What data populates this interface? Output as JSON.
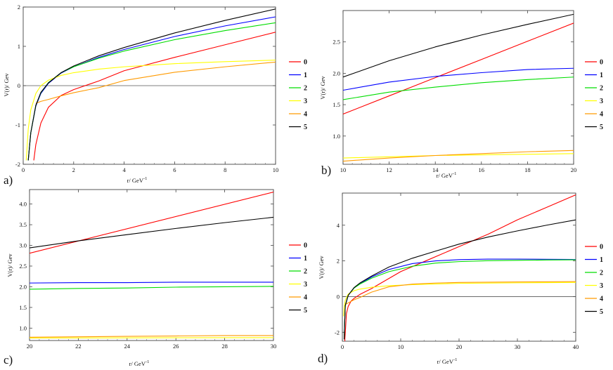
{
  "figure": {
    "legend_values": [
      "0",
      "1",
      "2",
      "3",
      "4",
      "5"
    ],
    "legend_colors": [
      "#ff0000",
      "#0000ff",
      "#00dd00",
      "#ffff00",
      "#ff9a00",
      "#000000"
    ]
  },
  "chart_data": [
    {
      "type": "line",
      "panel_label": "a)",
      "xlabel": "r/ GeV",
      "xlabel_sup": "-1",
      "ylabel": "V(r)/ Gev",
      "xlim": [
        0,
        10
      ],
      "ylim": [
        -2,
        2
      ],
      "xticks": [
        0,
        2,
        4,
        6,
        8,
        10
      ],
      "yticks": [
        -2,
        -1,
        0,
        1,
        2
      ],
      "series": [
        {
          "name": "0",
          "x": [
            0.42,
            0.5,
            0.7,
            1.0,
            1.5,
            2.0,
            3.0,
            4.0,
            6.0,
            8.0,
            10.0
          ],
          "y": [
            -1.9,
            -1.5,
            -0.95,
            -0.55,
            -0.25,
            -0.1,
            0.12,
            0.38,
            0.72,
            1.04,
            1.36
          ]
        },
        {
          "name": "1",
          "x": [
            0.2,
            0.3,
            0.5,
            0.7,
            1.0,
            1.5,
            2.0,
            3.0,
            4.0,
            6.0,
            8.0,
            10.0
          ],
          "y": [
            -1.9,
            -1.2,
            -0.52,
            -0.2,
            0.06,
            0.32,
            0.48,
            0.72,
            0.92,
            1.25,
            1.52,
            1.75
          ]
        },
        {
          "name": "2",
          "x": [
            0.2,
            0.3,
            0.5,
            0.7,
            1.0,
            1.5,
            2.0,
            3.0,
            4.0,
            6.0,
            8.0,
            10.0
          ],
          "y": [
            -1.9,
            -1.2,
            -0.5,
            -0.18,
            0.08,
            0.33,
            0.48,
            0.7,
            0.88,
            1.17,
            1.4,
            1.6
          ]
        },
        {
          "name": "3",
          "x": [
            0.12,
            0.2,
            0.3,
            0.5,
            0.7,
            1.0,
            1.5,
            2.0,
            3.0,
            4.0,
            6.0,
            8.0,
            10.0
          ],
          "y": [
            -1.9,
            -1.1,
            -0.62,
            -0.2,
            0.0,
            0.14,
            0.26,
            0.33,
            0.42,
            0.48,
            0.56,
            0.61,
            0.65
          ]
        },
        {
          "name": "4",
          "x": [
            0.5,
            0.7,
            1.0,
            1.5,
            2.0,
            3.0,
            4.0,
            6.0,
            8.0,
            10.0
          ],
          "y": [
            -0.45,
            -0.4,
            -0.35,
            -0.26,
            -0.18,
            -0.05,
            0.13,
            0.34,
            0.48,
            0.6
          ]
        },
        {
          "name": "5",
          "x": [
            0.2,
            0.3,
            0.5,
            0.7,
            1.0,
            1.5,
            2.0,
            3.0,
            4.0,
            6.0,
            8.0,
            10.0
          ],
          "y": [
            -1.9,
            -1.2,
            -0.5,
            -0.17,
            0.07,
            0.33,
            0.5,
            0.76,
            0.97,
            1.34,
            1.66,
            1.95
          ]
        }
      ]
    },
    {
      "type": "line",
      "panel_label": "b)",
      "xlabel": "r/ GeV",
      "xlabel_sup": "-1",
      "ylabel": "V(r)/ Gev",
      "xlim": [
        10,
        20
      ],
      "ylim": [
        0.55,
        3.0
      ],
      "xticks": [
        10,
        12,
        14,
        16,
        18,
        20
      ],
      "yticks": [
        1.0,
        1.5,
        2.0,
        2.5
      ],
      "series": [
        {
          "name": "0",
          "x": [
            10,
            12,
            14,
            16,
            18,
            20
          ],
          "y": [
            1.35,
            1.64,
            1.93,
            2.22,
            2.51,
            2.8
          ]
        },
        {
          "name": "1",
          "x": [
            10,
            12,
            14,
            16,
            18,
            20
          ],
          "y": [
            1.73,
            1.86,
            1.95,
            2.01,
            2.06,
            2.08
          ]
        },
        {
          "name": "2",
          "x": [
            10,
            12,
            14,
            16,
            18,
            20
          ],
          "y": [
            1.58,
            1.7,
            1.78,
            1.85,
            1.9,
            1.94
          ]
        },
        {
          "name": "3",
          "x": [
            10,
            12,
            14,
            16,
            18,
            20
          ],
          "y": [
            0.65,
            0.67,
            0.69,
            0.7,
            0.71,
            0.72
          ]
        },
        {
          "name": "4",
          "x": [
            10,
            12,
            14,
            16,
            18,
            20
          ],
          "y": [
            0.6,
            0.65,
            0.69,
            0.72,
            0.75,
            0.77
          ]
        },
        {
          "name": "5",
          "x": [
            10,
            12,
            14,
            16,
            18,
            20
          ],
          "y": [
            1.94,
            2.2,
            2.42,
            2.61,
            2.78,
            2.94
          ]
        }
      ]
    },
    {
      "type": "line",
      "panel_label": "c)",
      "xlabel": "r/ GeV",
      "xlabel_sup": "-1",
      "ylabel": "V(r)/ Gev",
      "xlim": [
        20,
        30
      ],
      "ylim": [
        0.7,
        4.35
      ],
      "xticks": [
        20,
        22,
        24,
        26,
        28,
        30
      ],
      "yticks": [
        1.0,
        1.5,
        2.0,
        2.5,
        3.0,
        3.5,
        4.0
      ],
      "series": [
        {
          "name": "0",
          "x": [
            20,
            30
          ],
          "y": [
            2.81,
            4.29
          ]
        },
        {
          "name": "1",
          "x": [
            20,
            22,
            24,
            26,
            28,
            30
          ],
          "y": [
            2.09,
            2.1,
            2.1,
            2.11,
            2.11,
            2.11
          ]
        },
        {
          "name": "2",
          "x": [
            20,
            22,
            24,
            26,
            28,
            30
          ],
          "y": [
            1.94,
            1.96,
            1.97,
            1.99,
            2.0,
            2.01
          ]
        },
        {
          "name": "3",
          "x": [
            20,
            30
          ],
          "y": [
            0.76,
            0.77
          ]
        },
        {
          "name": "4",
          "x": [
            20,
            22,
            24,
            26,
            28,
            30
          ],
          "y": [
            0.78,
            0.79,
            0.8,
            0.81,
            0.82,
            0.82
          ]
        },
        {
          "name": "5",
          "x": [
            20,
            22,
            24,
            26,
            28,
            30
          ],
          "y": [
            2.94,
            3.11,
            3.26,
            3.41,
            3.55,
            3.68
          ]
        }
      ]
    },
    {
      "type": "line",
      "panel_label": "d)",
      "xlabel": "r/ GeV",
      "xlabel_sup": "-1",
      "ylabel": "V(r)/ Gev",
      "xlim": [
        0,
        40
      ],
      "ylim": [
        -2.5,
        5.8
      ],
      "xticks": [
        0,
        10,
        20,
        30,
        40
      ],
      "yticks": [
        -2,
        0,
        2,
        4
      ],
      "series": [
        {
          "name": "0",
          "x": [
            0.42,
            0.7,
            1.0,
            1.5,
            2.0,
            3.0,
            5.0,
            10.0,
            15.0,
            20.0,
            25.0,
            30.0,
            35.0,
            40.0
          ],
          "y": [
            -2.5,
            -0.95,
            -0.55,
            -0.25,
            -0.1,
            0.12,
            0.45,
            1.4,
            2.1,
            2.8,
            3.5,
            4.3,
            5.0,
            5.7
          ]
        },
        {
          "name": "1",
          "x": [
            0.3,
            0.5,
            1.0,
            2.0,
            3.0,
            5.0,
            8.0,
            12.0,
            16.0,
            20.0,
            25.0,
            30.0,
            35.0,
            40.0
          ],
          "y": [
            -2.4,
            -0.52,
            0.06,
            0.48,
            0.72,
            1.1,
            1.52,
            1.85,
            2.0,
            2.07,
            2.1,
            2.1,
            2.09,
            2.08
          ]
        },
        {
          "name": "2",
          "x": [
            0.3,
            0.5,
            1.0,
            2.0,
            3.0,
            5.0,
            8.0,
            12.0,
            16.0,
            20.0,
            25.0,
            30.0,
            35.0,
            40.0
          ],
          "y": [
            -2.4,
            -0.5,
            0.08,
            0.48,
            0.7,
            1.03,
            1.4,
            1.7,
            1.88,
            1.96,
            2.01,
            2.03,
            2.05,
            2.06
          ]
        },
        {
          "name": "3",
          "x": [
            0.2,
            0.3,
            0.5,
            1.0,
            2.0,
            3.0,
            5.0,
            8.0,
            12.0,
            16.0,
            20.0,
            30.0,
            40.0
          ],
          "y": [
            -1.1,
            -0.62,
            -0.2,
            0.14,
            0.33,
            0.42,
            0.52,
            0.61,
            0.67,
            0.71,
            0.74,
            0.77,
            0.79
          ]
        },
        {
          "name": "4",
          "x": [
            0.5,
            1.0,
            2.0,
            3.0,
            5.0,
            8.0,
            12.0,
            16.0,
            20.0,
            30.0,
            40.0
          ],
          "y": [
            -0.45,
            -0.35,
            -0.18,
            -0.05,
            0.25,
            0.55,
            0.7,
            0.76,
            0.79,
            0.82,
            0.84
          ]
        },
        {
          "name": "5",
          "x": [
            0.3,
            0.5,
            1.0,
            2.0,
            3.0,
            5.0,
            8.0,
            12.0,
            16.0,
            20.0,
            25.0,
            30.0,
            35.0,
            40.0
          ],
          "y": [
            -2.4,
            -0.5,
            0.07,
            0.5,
            0.76,
            1.15,
            1.66,
            2.15,
            2.55,
            2.94,
            3.34,
            3.68,
            4.0,
            4.3
          ]
        }
      ]
    }
  ]
}
